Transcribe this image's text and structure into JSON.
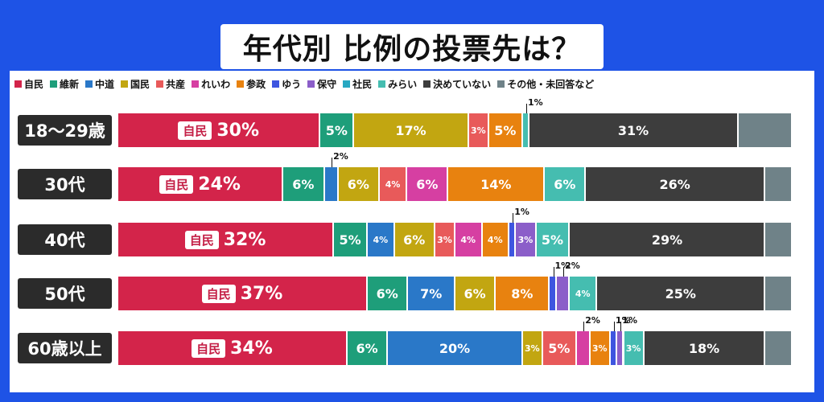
{
  "title": "年代別 比例の投票先は？",
  "colors": {
    "background": "#1e53e6",
    "自民": "#d3244a",
    "維新": "#1e9e7a",
    "中道": "#2a78c8",
    "国民": "#c2a611",
    "共産": "#e85a5a",
    "れいわ": "#d63fa2",
    "参政": "#e8820f",
    "ゆう": "#3e55e0",
    "保守": "#8b5ec9",
    "社民": "#28a8c2",
    "みらい": "#45bdb0",
    "決めていない": "#3d3d3d",
    "その他・未回答など": "#6f8288"
  },
  "chart_data": {
    "type": "bar",
    "orientation": "horizontal",
    "stacked": true,
    "title": "年代別 比例の投票先は？",
    "legend_position": "top",
    "legend": [
      "自民",
      "維新",
      "中道",
      "国民",
      "共産",
      "れいわ",
      "参政",
      "ゆう",
      "保守",
      "社民",
      "みらい",
      "決めていない",
      "その他・未回答など"
    ],
    "categories": [
      "18〜29歳",
      "30代",
      "40代",
      "50代",
      "60歳以上"
    ],
    "label_prefix": "自民",
    "series": [
      {
        "name": "自民",
        "values": [
          30,
          24,
          32,
          37,
          34
        ]
      },
      {
        "name": "維新",
        "values": [
          5,
          6,
          5,
          6,
          6
        ]
      },
      {
        "name": "中道",
        "values": [
          0,
          2,
          4,
          7,
          20
        ]
      },
      {
        "name": "国民",
        "values": [
          17,
          6,
          6,
          6,
          3
        ]
      },
      {
        "name": "共産",
        "values": [
          3,
          4,
          3,
          0,
          5
        ]
      },
      {
        "name": "れいわ",
        "values": [
          0,
          6,
          4,
          0,
          2
        ]
      },
      {
        "name": "参政",
        "values": [
          5,
          14,
          4,
          8,
          3
        ]
      },
      {
        "name": "ゆう",
        "values": [
          0,
          0,
          1,
          1,
          1
        ]
      },
      {
        "name": "保守",
        "values": [
          0,
          0,
          3,
          2,
          1
        ]
      },
      {
        "name": "社民",
        "values": [
          0,
          0,
          0,
          0,
          0
        ]
      },
      {
        "name": "みらい",
        "values": [
          1,
          6,
          5,
          4,
          3
        ]
      },
      {
        "name": "決めていない",
        "values": [
          31,
          26,
          29,
          25,
          18
        ]
      },
      {
        "name": "その他・未回答など",
        "values": [
          8,
          4,
          4,
          4,
          4
        ]
      }
    ]
  }
}
